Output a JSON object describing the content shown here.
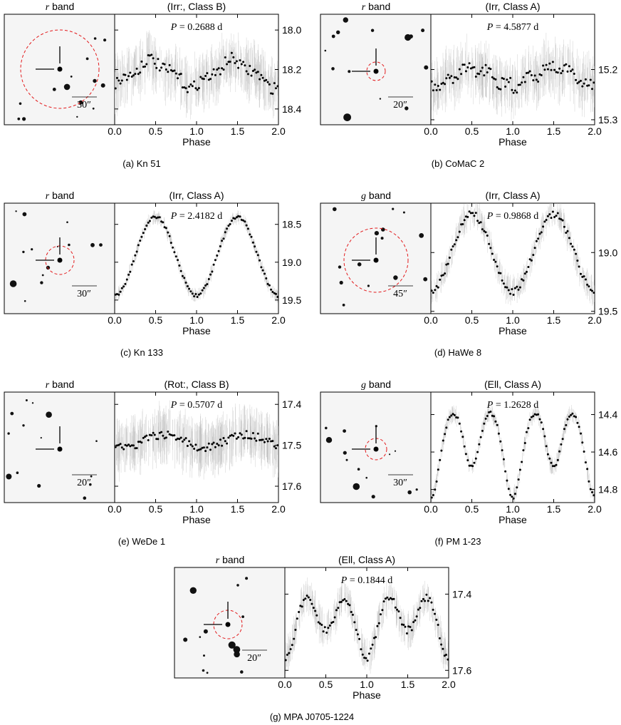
{
  "figure": {
    "xlabel": "Phase",
    "xticks": [
      "0.0",
      "0.5",
      "1.0",
      "1.5",
      "2.0"
    ],
    "marker_color": "#000000",
    "error_color": "#bcbcbc",
    "circle_color": "#e31a1c"
  },
  "chart_data": [
    {
      "id": "a",
      "type": "scatter",
      "band_letter": "r",
      "band_word": "band",
      "title": "(Irr:, Class B)",
      "period": "= 0.2688 d",
      "scale_label": "30″",
      "caption": "(a)  Kn 51",
      "ylim": [
        18.48,
        17.92
      ],
      "yticks": [
        "18.0",
        "18.2",
        "18.4"
      ],
      "shape": "irregular",
      "mean": 18.22,
      "amp": 0.06,
      "noise": 0.03,
      "err": 0.09
    },
    {
      "id": "b",
      "type": "scatter",
      "band_letter": "r",
      "band_word": "band",
      "title": "(Irr, Class A)",
      "period": "= 4.5877 d",
      "scale_label": "20″",
      "caption": "(b)  CoMaC 2",
      "ylim": [
        15.31,
        15.09
      ],
      "yticks": [
        "15.2",
        "15.3"
      ],
      "shape": "irregular2",
      "mean": 15.215,
      "amp": 0.018,
      "noise": 0.012,
      "err": 0.035
    },
    {
      "id": "c",
      "type": "scatter",
      "band_letter": "r",
      "band_word": "band",
      "title": "(Irr, Class A)",
      "period": "= 2.4182 d",
      "scale_label": "30″",
      "caption": "(c)  Kn 133",
      "ylim": [
        19.68,
        18.22
      ],
      "yticks": [
        "18.5",
        "19.0",
        "19.5"
      ],
      "shape": "sine",
      "mean": 18.92,
      "amp": 0.52,
      "noise": 0.02,
      "err": 0.06
    },
    {
      "id": "d",
      "type": "scatter",
      "band_letter": "g",
      "band_word": "band",
      "title": "(Irr, Class A)",
      "period": "= 0.9868 d",
      "scale_label": "45″",
      "caption": "(d)  HaWe 8",
      "ylim": [
        19.52,
        18.58
      ],
      "yticks": [
        "19.0",
        "19.5"
      ],
      "shape": "sine",
      "mean": 19.0,
      "amp": 0.33,
      "noise": 0.03,
      "err": 0.07
    },
    {
      "id": "e",
      "type": "scatter",
      "band_letter": "r",
      "band_word": "band",
      "title": "(Rot:, Class B)",
      "period": "= 0.5707 d",
      "scale_label": "20″",
      "caption": "(e)  WeDe 1",
      "ylim": [
        17.64,
        17.37
      ],
      "yticks": [
        "17.4",
        "17.5",
        "17.6"
      ],
      "shape": "rot",
      "mean": 17.49,
      "amp": 0.015,
      "noise": 0.01,
      "err": 0.05
    },
    {
      "id": "f",
      "type": "scatter",
      "band_letter": "g",
      "band_word": "band",
      "title": "(Ell, Class A)",
      "period": "= 1.2628 d",
      "scale_label": "30″",
      "caption": "(f)  PM 1-23",
      "ylim": [
        14.87,
        14.28
      ],
      "yticks": [
        "14.4",
        "14.6",
        "14.8"
      ],
      "shape": "ell",
      "mean": 14.55,
      "amp": 0.2,
      "noise": 0.01,
      "err": 0.03
    },
    {
      "id": "g",
      "type": "scatter",
      "band_letter": "r",
      "band_word": "band",
      "title": "(Ell, Class A)",
      "period": "= 0.1844 d",
      "scale_label": "20″",
      "caption": "(g)  MPA J0705-1224",
      "ylim": [
        17.62,
        17.33
      ],
      "yticks": [
        "17.4",
        "17.6"
      ],
      "shape": "ell2",
      "mean": 17.47,
      "amp": 0.06,
      "noise": 0.01,
      "err": 0.03
    }
  ]
}
